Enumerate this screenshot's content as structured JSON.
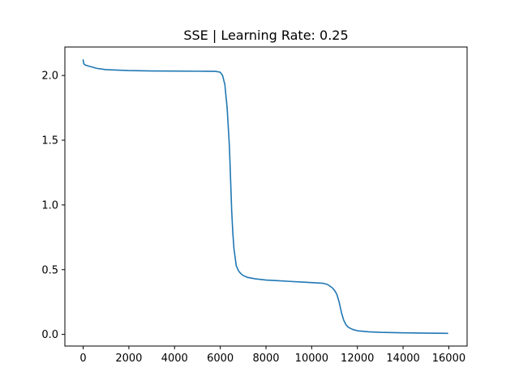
{
  "chart_data": {
    "type": "line",
    "title": "SSE | Learning Rate: 0.25",
    "xlabel": "",
    "ylabel": "",
    "xlim": [
      -800,
      16800
    ],
    "ylim": [
      -0.09,
      2.22
    ],
    "grid": false,
    "xticks": [
      0,
      2000,
      4000,
      6000,
      8000,
      10000,
      12000,
      14000,
      16000
    ],
    "xtick_labels": [
      "0",
      "2000",
      "4000",
      "6000",
      "8000",
      "10000",
      "12000",
      "14000",
      "16000"
    ],
    "yticks": [
      0.0,
      0.5,
      1.0,
      1.5,
      2.0
    ],
    "ytick_labels": [
      "0.0",
      "0.5",
      "1.0",
      "1.5",
      "2.0"
    ],
    "series": [
      {
        "color": "#1f77b4",
        "x": [
          0,
          30,
          100,
          300,
          600,
          1000,
          2000,
          3000,
          4000,
          5000,
          5800,
          6000,
          6100,
          6200,
          6300,
          6400,
          6450,
          6500,
          6550,
          6600,
          6700,
          6800,
          6900,
          7000,
          7200,
          7500,
          8000,
          8500,
          9000,
          9500,
          10000,
          10500,
          10700,
          10900,
          11000,
          11100,
          11200,
          11300,
          11400,
          11500,
          11600,
          11800,
          12000,
          12500,
          13000,
          14000,
          15000,
          15950
        ],
        "y": [
          2.12,
          2.09,
          2.08,
          2.07,
          2.055,
          2.045,
          2.038,
          2.035,
          2.034,
          2.033,
          2.032,
          2.025,
          2.0,
          1.93,
          1.75,
          1.45,
          1.2,
          0.95,
          0.78,
          0.66,
          0.53,
          0.49,
          0.47,
          0.455,
          0.44,
          0.43,
          0.42,
          0.415,
          0.41,
          0.405,
          0.4,
          0.395,
          0.385,
          0.36,
          0.34,
          0.31,
          0.25,
          0.17,
          0.11,
          0.075,
          0.055,
          0.038,
          0.028,
          0.02,
          0.016,
          0.012,
          0.01,
          0.008
        ]
      }
    ]
  }
}
